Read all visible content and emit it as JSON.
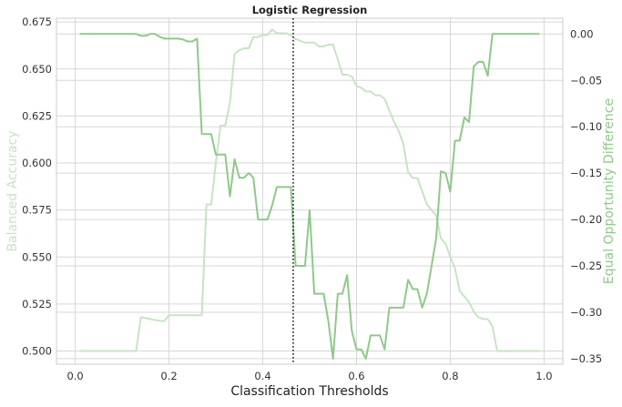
{
  "chart_data": {
    "type": "line",
    "title": "Logistic Regression",
    "xlabel": "Classification Thresholds",
    "ylabel_left": "Balanced Accuracy",
    "ylabel_right": "Equal Opportunity Difference",
    "xlim": [
      -0.04,
      1.04
    ],
    "ylim_left": [
      0.493,
      0.677
    ],
    "ylim_right": [
      -0.356,
      0.017
    ],
    "xticks": [
      0.0,
      0.2,
      0.4,
      0.6,
      0.8,
      1.0
    ],
    "xtick_labels": [
      "0.0",
      "0.2",
      "0.4",
      "0.6",
      "0.8",
      "1.0"
    ],
    "yticks_left": [
      0.5,
      0.525,
      0.55,
      0.575,
      0.6,
      0.625,
      0.65,
      0.675
    ],
    "ytick_labels_left": [
      "0.500",
      "0.525",
      "0.550",
      "0.575",
      "0.600",
      "0.625",
      "0.650",
      "0.675"
    ],
    "yticks_right": [
      0.0,
      -0.05,
      -0.1,
      -0.15,
      -0.2,
      -0.25,
      -0.3,
      -0.35
    ],
    "ytick_labels_right": [
      "0.00",
      "−0.05",
      "−0.10",
      "−0.15",
      "−0.20",
      "−0.25",
      "−0.30",
      "−0.35"
    ],
    "grid": true,
    "vline": {
      "x": 0.465,
      "style": "dotted"
    },
    "colors": {
      "balanced_accuracy": "#c7e4c3",
      "equal_opportunity": "#8fc98a",
      "left_label": "#c7e4c3",
      "right_label": "#8fc98a",
      "grid": "#d7d7d7",
      "vline": "#222222"
    },
    "series": [
      {
        "axis": "left",
        "x": [
          0.01,
          0.13,
          0.14,
          0.16,
          0.18,
          0.19,
          0.2,
          0.27,
          0.28,
          0.29,
          0.3,
          0.31,
          0.32,
          0.33,
          0.34,
          0.35,
          0.36,
          0.37,
          0.38,
          0.39,
          0.4,
          0.41,
          0.42,
          0.43,
          0.44,
          0.45,
          0.46,
          0.47,
          0.48,
          0.49,
          0.5,
          0.51,
          0.52,
          0.53,
          0.54,
          0.55,
          0.56,
          0.57,
          0.58,
          0.59,
          0.6,
          0.61,
          0.62,
          0.63,
          0.64,
          0.65,
          0.66,
          0.67,
          0.68,
          0.69,
          0.7,
          0.71,
          0.72,
          0.73,
          0.74,
          0.75,
          0.76,
          0.77,
          0.78,
          0.79,
          0.8,
          0.81,
          0.82,
          0.83,
          0.84,
          0.85,
          0.86,
          0.87,
          0.88,
          0.89,
          0.9,
          0.99
        ],
        "values": [
          0.5,
          0.5,
          0.518,
          0.517,
          0.516,
          0.516,
          0.519,
          0.519,
          0.578,
          0.578,
          0.6,
          0.62,
          0.62,
          0.632,
          0.658,
          0.66,
          0.661,
          0.661,
          0.667,
          0.667,
          0.668,
          0.668,
          0.671,
          0.669,
          0.669,
          0.669,
          0.668,
          0.666,
          0.665,
          0.664,
          0.664,
          0.664,
          0.662,
          0.662,
          0.663,
          0.663,
          0.655,
          0.647,
          0.647,
          0.646,
          0.641,
          0.64,
          0.638,
          0.638,
          0.636,
          0.636,
          0.634,
          0.628,
          0.622,
          0.617,
          0.61,
          0.595,
          0.592,
          0.592,
          0.585,
          0.578,
          0.575,
          0.572,
          0.56,
          0.557,
          0.55,
          0.544,
          0.532,
          0.529,
          0.526,
          0.521,
          0.518,
          0.517,
          0.517,
          0.513,
          0.5,
          0.5
        ]
      },
      {
        "axis": "right",
        "x": [
          0.01,
          0.13,
          0.14,
          0.15,
          0.16,
          0.17,
          0.18,
          0.19,
          0.2,
          0.21,
          0.22,
          0.23,
          0.24,
          0.25,
          0.26,
          0.27,
          0.28,
          0.29,
          0.3,
          0.31,
          0.32,
          0.33,
          0.34,
          0.35,
          0.36,
          0.37,
          0.38,
          0.39,
          0.4,
          0.41,
          0.42,
          0.43,
          0.44,
          0.45,
          0.46,
          0.47,
          0.48,
          0.49,
          0.5,
          0.51,
          0.52,
          0.53,
          0.54,
          0.55,
          0.56,
          0.57,
          0.58,
          0.59,
          0.6,
          0.61,
          0.62,
          0.63,
          0.64,
          0.65,
          0.66,
          0.67,
          0.68,
          0.69,
          0.7,
          0.71,
          0.72,
          0.73,
          0.74,
          0.75,
          0.76,
          0.77,
          0.78,
          0.79,
          0.8,
          0.81,
          0.82,
          0.83,
          0.84,
          0.85,
          0.86,
          0.87,
          0.88,
          0.89,
          0.9,
          0.99
        ],
        "values": [
          0.0,
          0.0,
          -0.002,
          -0.002,
          0.0,
          0.0,
          -0.003,
          -0.005,
          -0.005,
          -0.005,
          -0.005,
          -0.006,
          -0.008,
          -0.008,
          -0.005,
          -0.108,
          -0.108,
          -0.108,
          -0.13,
          -0.13,
          -0.13,
          -0.175,
          -0.135,
          -0.155,
          -0.155,
          -0.15,
          -0.155,
          -0.2,
          -0.2,
          -0.2,
          -0.185,
          -0.165,
          -0.165,
          -0.165,
          -0.165,
          -0.25,
          -0.25,
          -0.25,
          -0.19,
          -0.28,
          -0.28,
          -0.28,
          -0.31,
          -0.35,
          -0.28,
          -0.28,
          -0.26,
          -0.32,
          -0.34,
          -0.34,
          -0.35,
          -0.325,
          -0.325,
          -0.325,
          -0.34,
          -0.295,
          -0.295,
          -0.295,
          -0.295,
          -0.265,
          -0.275,
          -0.275,
          -0.295,
          -0.28,
          -0.25,
          -0.22,
          -0.148,
          -0.15,
          -0.17,
          -0.115,
          -0.115,
          -0.09,
          -0.095,
          -0.035,
          -0.03,
          -0.03,
          -0.045,
          0.0,
          0.0,
          0.0
        ]
      }
    ]
  }
}
